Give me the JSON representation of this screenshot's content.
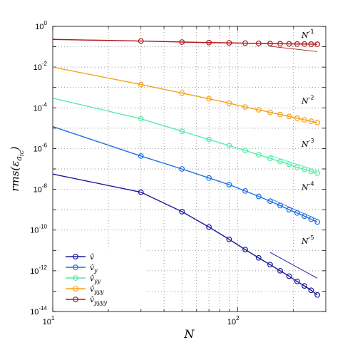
{
  "chart_data": {
    "type": "line",
    "xscale": "log",
    "yscale": "log",
    "xlabel": "N",
    "ylabel": "rms(ε_{a_{ic}})",
    "xlim": [
      10,
      300
    ],
    "ylim": [
      1e-14,
      1
    ],
    "grid": true,
    "legend_position": "bottom-left",
    "x_ticks": [
      {
        "value": 10,
        "base": "10",
        "exp": "1"
      },
      {
        "value": 100,
        "base": "10",
        "exp": "2"
      }
    ],
    "y_ticks": [
      {
        "value": 1,
        "base": "10",
        "exp": "0"
      },
      {
        "value": 0.01,
        "base": "10",
        "exp": "-2"
      },
      {
        "value": 0.0001,
        "base": "10",
        "exp": "-4"
      },
      {
        "value": 1e-06,
        "base": "10",
        "exp": "-6"
      },
      {
        "value": 1e-08,
        "base": "10",
        "exp": "-8"
      },
      {
        "value": 1e-10,
        "base": "10",
        "exp": "-10"
      },
      {
        "value": 1e-12,
        "base": "10",
        "exp": "-12"
      },
      {
        "value": 1e-14,
        "base": "10",
        "exp": "-14"
      }
    ],
    "series": [
      {
        "name": "v̂",
        "subscript": "",
        "color": "#1a1a9e",
        "x": [
          10,
          30,
          50,
          70,
          90,
          110,
          130,
          150,
          170,
          190,
          210,
          230,
          250,
          270
        ],
        "y": [
          5.6e-08,
          7.2e-09,
          8e-10,
          1.4e-10,
          3.5e-11,
          1.1e-11,
          4.3e-12,
          2e-12,
          1e-12,
          5.4e-13,
          3e-13,
          1.8e-13,
          1.1e-13,
          6.5e-14
        ],
        "marker_from_index": 1,
        "slope": {
          "label_base": "N",
          "label_exp": "-5",
          "x": [
            150,
            270
          ],
          "y": [
            8e-12,
            4.3e-13
          ]
        }
      },
      {
        "name": "v̂",
        "subscript": "y",
        "color": "#1e6fe6",
        "x": [
          10,
          30,
          50,
          70,
          90,
          110,
          130,
          150,
          170,
          190,
          210,
          230,
          250,
          270
        ],
        "y": [
          1.2e-05,
          4.3e-07,
          1e-07,
          3.6e-08,
          1.7e-08,
          8.3e-09,
          4.5e-09,
          2.6e-09,
          1.6e-09,
          1e-09,
          6.9e-10,
          4.8e-10,
          3.4e-10,
          2.5e-10
        ],
        "marker_from_index": 1,
        "slope": {
          "label_base": "N",
          "label_exp": "-4",
          "x": [
            150,
            270
          ],
          "y": [
            3.5e-09,
            3.3e-10
          ]
        }
      },
      {
        "name": "v̂",
        "subscript": "yy",
        "color": "#57ecaa",
        "x": [
          10,
          30,
          50,
          70,
          90,
          110,
          130,
          150,
          170,
          190,
          210,
          230,
          250,
          270
        ],
        "y": [
          0.0003,
          2.9e-05,
          7.1e-06,
          2.8e-06,
          1.4e-06,
          8e-07,
          5e-07,
          3.3e-07,
          2.3e-07,
          1.7e-07,
          1.2e-07,
          9.6e-08,
          7.6e-08,
          6.2e-08
        ],
        "marker_from_index": 1,
        "slope": {
          "label_base": "N",
          "label_exp": "-3",
          "x": [
            150,
            270
          ],
          "y": [
            4.6e-07,
            8e-08
          ]
        }
      },
      {
        "name": "v̂",
        "subscript": "yyy",
        "color": "#f6a21c",
        "x": [
          10,
          30,
          50,
          70,
          90,
          110,
          130,
          150,
          170,
          190,
          210,
          230,
          250,
          270
        ],
        "y": [
          0.01,
          0.0014,
          0.00053,
          0.00028,
          0.00017,
          0.00011,
          8e-05,
          6e-05,
          4.7e-05,
          3.8e-05,
          3.1e-05,
          2.6e-05,
          2.2e-05,
          1.9e-05
        ],
        "marker_from_index": 1,
        "slope": {
          "label_base": "N",
          "label_exp": "-2",
          "x": [
            150,
            270
          ],
          "y": [
            6e-05,
            1.85e-05
          ]
        }
      },
      {
        "name": "v̂",
        "subscript": "yyyy",
        "color": "#b3161b",
        "x": [
          10,
          30,
          50,
          70,
          90,
          110,
          130,
          150,
          170,
          190,
          210,
          230,
          250,
          270
        ],
        "y": [
          0.23,
          0.19,
          0.17,
          0.16,
          0.155,
          0.15,
          0.146,
          0.143,
          0.141,
          0.139,
          0.137,
          0.136,
          0.134,
          0.133
        ],
        "marker_from_index": 1,
        "slope": {
          "label_base": "N",
          "label_exp": "-1",
          "x": [
            150,
            270
          ],
          "y": [
            0.105,
            0.058
          ]
        }
      }
    ]
  }
}
